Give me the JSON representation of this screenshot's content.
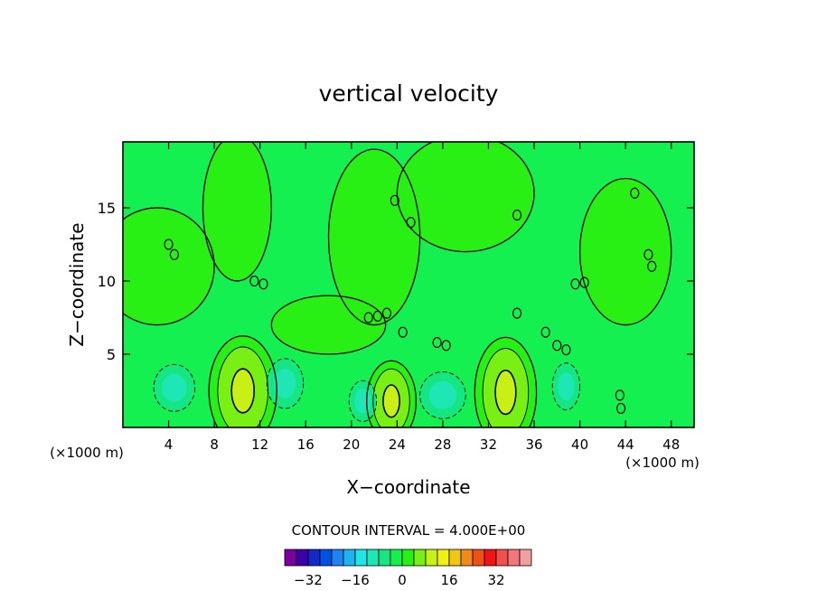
{
  "chart_data": {
    "type": "heatmap",
    "title": "vertical velocity",
    "xlabel": "X−coordinate",
    "ylabel": "Z−coordinate",
    "x_unit": "(×1000 m)",
    "xlim": [
      0,
      50
    ],
    "ylim": [
      0,
      19.5
    ],
    "x_ticks": [
      "4",
      "8",
      "12",
      "16",
      "20",
      "24",
      "28",
      "32",
      "36",
      "40",
      "44",
      "48"
    ],
    "y_ticks": [
      "5",
      "10",
      "15"
    ],
    "contour_interval_label": "CONTOUR INTERVAL = 4.000E+00",
    "colorbar": {
      "tick_labels": [
        "−32",
        "−16",
        "0",
        "16",
        "32"
      ],
      "colors": [
        "#7b00a0",
        "#3c00a8",
        "#1428c8",
        "#0050e6",
        "#1e82f0",
        "#1eb4f0",
        "#1ee6e6",
        "#1ee6b4",
        "#14e682",
        "#14f050",
        "#28f014",
        "#78f014",
        "#c8f014",
        "#f0f014",
        "#f0c814",
        "#f08c14",
        "#f05014",
        "#f01414",
        "#f05050",
        "#f07878",
        "#f0a0a0"
      ]
    },
    "regions": [
      {
        "kind": "up",
        "x": 10.5,
        "z": 2.5,
        "rx": 2.2,
        "rz": 3.0
      },
      {
        "kind": "up",
        "x": 33.5,
        "z": 2.4,
        "rx": 2.0,
        "rz": 3.0
      },
      {
        "kind": "up",
        "x": 23.5,
        "z": 1.8,
        "rx": 1.6,
        "rz": 2.2
      },
      {
        "kind": "down",
        "x": 4.5,
        "z": 2.7,
        "rx": 1.8,
        "rz": 1.6
      },
      {
        "kind": "down",
        "x": 14.2,
        "z": 3.0,
        "rx": 1.6,
        "rz": 1.7
      },
      {
        "kind": "down",
        "x": 21.0,
        "z": 1.8,
        "rx": 1.2,
        "rz": 1.4
      },
      {
        "kind": "down",
        "x": 28.0,
        "z": 2.2,
        "rx": 2.0,
        "rz": 1.6
      },
      {
        "kind": "down",
        "x": 38.8,
        "z": 2.8,
        "rx": 1.2,
        "rz": 1.6
      }
    ]
  }
}
